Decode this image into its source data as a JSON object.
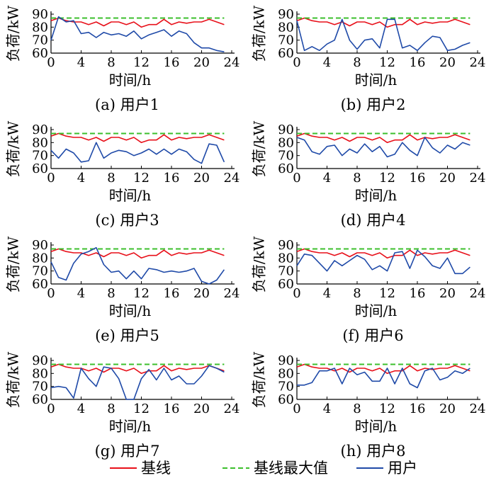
{
  "legend": {
    "baseline": "基线",
    "baseline_max": "基线最大值",
    "user": "用户"
  },
  "colors": {
    "baseline": "#e8101a",
    "baseline_max": "#3cbf2c",
    "user": "#1f4aa8"
  },
  "chart_data": [
    {
      "type": "line",
      "title": "(a) 用户1",
      "xlabel": "时间/h",
      "ylabel": "负荷/kW",
      "xlim": [
        0,
        24
      ],
      "ylim": [
        60,
        90
      ],
      "xticks": [
        0,
        4,
        8,
        12,
        16,
        20,
        24
      ],
      "yticks": [
        60,
        70,
        80,
        90
      ],
      "grid": false,
      "x": [
        0,
        1,
        2,
        3,
        4,
        5,
        6,
        7,
        8,
        9,
        10,
        11,
        12,
        13,
        14,
        15,
        16,
        17,
        18,
        19,
        20,
        21,
        22,
        23
      ],
      "series": [
        {
          "name": "基线",
          "values": [
            85,
            87,
            85,
            84,
            84,
            82,
            84,
            81,
            84,
            84,
            82,
            84,
            80,
            82,
            82,
            86,
            82,
            84,
            83,
            84,
            84,
            86,
            84,
            82
          ]
        },
        {
          "name": "基线最大值",
          "values": [
            87,
            87,
            87,
            87,
            87,
            87,
            87,
            87,
            87,
            87,
            87,
            87,
            87,
            87,
            87,
            87,
            87,
            87,
            87,
            87,
            87,
            87,
            87,
            87
          ]
        },
        {
          "name": "用户",
          "values": [
            70,
            88,
            84,
            85,
            75,
            76,
            72,
            76,
            74,
            75,
            73,
            77,
            71,
            74,
            76,
            78,
            73,
            77,
            75,
            68,
            64,
            64,
            62,
            61
          ]
        }
      ]
    },
    {
      "type": "line",
      "title": "(b) 用户2",
      "xlabel": "时间/h",
      "ylabel": "负荷/kW",
      "xlim": [
        0,
        24
      ],
      "ylim": [
        60,
        90
      ],
      "xticks": [
        0,
        4,
        8,
        12,
        16,
        20,
        24
      ],
      "yticks": [
        60,
        70,
        80,
        90
      ],
      "grid": false,
      "x": [
        0,
        1,
        2,
        3,
        4,
        5,
        6,
        7,
        8,
        9,
        10,
        11,
        12,
        13,
        14,
        15,
        16,
        17,
        18,
        19,
        20,
        21,
        22,
        23
      ],
      "series": [
        {
          "name": "基线",
          "values": [
            85,
            87,
            85,
            84,
            84,
            82,
            84,
            81,
            84,
            84,
            82,
            84,
            80,
            82,
            82,
            86,
            82,
            84,
            83,
            84,
            84,
            86,
            84,
            82
          ]
        },
        {
          "name": "基线最大值",
          "values": [
            87,
            87,
            87,
            87,
            87,
            87,
            87,
            87,
            87,
            87,
            87,
            87,
            87,
            87,
            87,
            87,
            87,
            87,
            87,
            87,
            87,
            87,
            87,
            87
          ]
        },
        {
          "name": "用户",
          "values": [
            85,
            62,
            65,
            62,
            67,
            70,
            86,
            70,
            63,
            70,
            71,
            64,
            86,
            86,
            64,
            66,
            62,
            68,
            73,
            72,
            62,
            63,
            66,
            68
          ]
        }
      ]
    },
    {
      "type": "line",
      "title": "(c) 用户3",
      "xlabel": "时间/h",
      "ylabel": "负荷/kW",
      "xlim": [
        0,
        24
      ],
      "ylim": [
        60,
        90
      ],
      "xticks": [
        0,
        4,
        8,
        12,
        16,
        20,
        24
      ],
      "yticks": [
        60,
        70,
        80,
        90
      ],
      "grid": false,
      "x": [
        0,
        1,
        2,
        3,
        4,
        5,
        6,
        7,
        8,
        9,
        10,
        11,
        12,
        13,
        14,
        15,
        16,
        17,
        18,
        19,
        20,
        21,
        22,
        23
      ],
      "series": [
        {
          "name": "基线",
          "values": [
            85,
            87,
            85,
            84,
            84,
            82,
            84,
            81,
            84,
            84,
            82,
            84,
            80,
            82,
            82,
            86,
            82,
            84,
            83,
            84,
            84,
            86,
            84,
            82
          ]
        },
        {
          "name": "基线最大值",
          "values": [
            87,
            87,
            87,
            87,
            87,
            87,
            87,
            87,
            87,
            87,
            87,
            87,
            87,
            87,
            87,
            87,
            87,
            87,
            87,
            87,
            87,
            87,
            87,
            87
          ]
        },
        {
          "name": "用户",
          "values": [
            74,
            68,
            75,
            72,
            65,
            66,
            80,
            68,
            72,
            74,
            73,
            70,
            72,
            75,
            71,
            75,
            71,
            75,
            73,
            67,
            64,
            79,
            78,
            65
          ]
        }
      ]
    },
    {
      "type": "line",
      "title": "(d) 用户4",
      "xlabel": "时间/h",
      "ylabel": "负荷/kW",
      "xlim": [
        0,
        24
      ],
      "ylim": [
        60,
        90
      ],
      "xticks": [
        0,
        4,
        8,
        12,
        16,
        20,
        24
      ],
      "yticks": [
        60,
        70,
        80,
        90
      ],
      "grid": false,
      "x": [
        0,
        1,
        2,
        3,
        4,
        5,
        6,
        7,
        8,
        9,
        10,
        11,
        12,
        13,
        14,
        15,
        16,
        17,
        18,
        19,
        20,
        21,
        22,
        23
      ],
      "series": [
        {
          "name": "基线",
          "values": [
            85,
            87,
            85,
            84,
            84,
            82,
            84,
            81,
            84,
            84,
            82,
            84,
            80,
            82,
            82,
            86,
            82,
            84,
            83,
            84,
            84,
            86,
            84,
            82
          ]
        },
        {
          "name": "基线最大值",
          "values": [
            87,
            87,
            87,
            87,
            87,
            87,
            87,
            87,
            87,
            87,
            87,
            87,
            87,
            87,
            87,
            87,
            87,
            87,
            87,
            87,
            87,
            87,
            87,
            87
          ]
        },
        {
          "name": "用户",
          "values": [
            84,
            82,
            73,
            71,
            77,
            78,
            70,
            75,
            72,
            79,
            73,
            77,
            69,
            71,
            80,
            74,
            70,
            84,
            76,
            72,
            78,
            75,
            80,
            78
          ]
        }
      ]
    },
    {
      "type": "line",
      "title": "(e) 用户5",
      "xlabel": "时间/h",
      "ylabel": "负荷/kW",
      "xlim": [
        0,
        24
      ],
      "ylim": [
        60,
        90
      ],
      "xticks": [
        0,
        4,
        8,
        12,
        16,
        20,
        24
      ],
      "yticks": [
        60,
        70,
        80,
        90
      ],
      "grid": false,
      "x": [
        0,
        1,
        2,
        3,
        4,
        5,
        6,
        7,
        8,
        9,
        10,
        11,
        12,
        13,
        14,
        15,
        16,
        17,
        18,
        19,
        20,
        21,
        22,
        23
      ],
      "series": [
        {
          "name": "基线",
          "values": [
            85,
            87,
            85,
            84,
            84,
            82,
            84,
            81,
            84,
            84,
            82,
            84,
            80,
            82,
            82,
            86,
            82,
            84,
            83,
            84,
            84,
            86,
            84,
            82
          ]
        },
        {
          "name": "基线最大值",
          "values": [
            87,
            87,
            87,
            87,
            87,
            87,
            87,
            87,
            87,
            87,
            87,
            87,
            87,
            87,
            87,
            87,
            87,
            87,
            87,
            87,
            87,
            87,
            87,
            87
          ]
        },
        {
          "name": "用户",
          "values": [
            77,
            65,
            63,
            76,
            83,
            85,
            88,
            75,
            69,
            70,
            64,
            70,
            64,
            72,
            71,
            69,
            70,
            69,
            70,
            72,
            62,
            60,
            63,
            71
          ]
        }
      ]
    },
    {
      "type": "line",
      "title": "(f) 用户6",
      "xlabel": "时间/h",
      "ylabel": "负荷/kW",
      "xlim": [
        0,
        24
      ],
      "ylim": [
        60,
        90
      ],
      "xticks": [
        0,
        4,
        8,
        12,
        16,
        20,
        24
      ],
      "yticks": [
        60,
        70,
        80,
        90
      ],
      "grid": false,
      "x": [
        0,
        1,
        2,
        3,
        4,
        5,
        6,
        7,
        8,
        9,
        10,
        11,
        12,
        13,
        14,
        15,
        16,
        17,
        18,
        19,
        20,
        21,
        22,
        23
      ],
      "series": [
        {
          "name": "基线",
          "values": [
            85,
            87,
            85,
            84,
            84,
            82,
            84,
            81,
            84,
            84,
            82,
            84,
            80,
            82,
            82,
            86,
            82,
            84,
            83,
            84,
            84,
            86,
            84,
            82
          ]
        },
        {
          "name": "基线最大值",
          "values": [
            87,
            87,
            87,
            87,
            87,
            87,
            87,
            87,
            87,
            87,
            87,
            87,
            87,
            87,
            87,
            87,
            87,
            87,
            87,
            87,
            87,
            87,
            87,
            87
          ]
        },
        {
          "name": "用户",
          "values": [
            74,
            83,
            82,
            76,
            70,
            78,
            74,
            78,
            82,
            79,
            71,
            74,
            70,
            84,
            85,
            72,
            86,
            81,
            74,
            72,
            80,
            68,
            68,
            73
          ]
        }
      ]
    },
    {
      "type": "line",
      "title": "(g) 用户7",
      "xlabel": "时间/h",
      "ylabel": "负荷/kW",
      "xlim": [
        0,
        24
      ],
      "ylim": [
        60,
        90
      ],
      "xticks": [
        0,
        4,
        8,
        12,
        16,
        20,
        24
      ],
      "yticks": [
        60,
        70,
        80,
        90
      ],
      "grid": false,
      "x": [
        0,
        1,
        2,
        3,
        4,
        5,
        6,
        7,
        8,
        9,
        10,
        11,
        12,
        13,
        14,
        15,
        16,
        17,
        18,
        19,
        20,
        21,
        22,
        23
      ],
      "series": [
        {
          "name": "基线",
          "values": [
            85,
            87,
            85,
            84,
            84,
            82,
            84,
            81,
            84,
            84,
            82,
            84,
            80,
            82,
            82,
            86,
            82,
            84,
            83,
            84,
            84,
            86,
            84,
            82
          ]
        },
        {
          "name": "基线最大值",
          "values": [
            87,
            87,
            87,
            87,
            87,
            87,
            87,
            87,
            87,
            87,
            87,
            87,
            87,
            87,
            87,
            87,
            87,
            87,
            87,
            87,
            87,
            87,
            87,
            87
          ]
        },
        {
          "name": "用户",
          "values": [
            69,
            70,
            69,
            61,
            84,
            76,
            70,
            85,
            84,
            76,
            60,
            60,
            76,
            83,
            75,
            84,
            75,
            78,
            72,
            72,
            78,
            86,
            84,
            81
          ]
        }
      ]
    },
    {
      "type": "line",
      "title": "(h) 用户8",
      "xlabel": "时间/h",
      "ylabel": "负荷/kW",
      "xlim": [
        0,
        24
      ],
      "ylim": [
        60,
        90
      ],
      "xticks": [
        0,
        4,
        8,
        12,
        16,
        20,
        24
      ],
      "yticks": [
        60,
        70,
        80,
        90
      ],
      "grid": false,
      "x": [
        0,
        1,
        2,
        3,
        4,
        5,
        6,
        7,
        8,
        9,
        10,
        11,
        12,
        13,
        14,
        15,
        16,
        17,
        18,
        19,
        20,
        21,
        22,
        23
      ],
      "series": [
        {
          "name": "基线",
          "values": [
            85,
            87,
            85,
            84,
            84,
            82,
            84,
            81,
            84,
            84,
            82,
            84,
            80,
            82,
            82,
            86,
            82,
            84,
            83,
            84,
            84,
            86,
            84,
            82
          ]
        },
        {
          "name": "基线最大值",
          "values": [
            87,
            87,
            87,
            87,
            87,
            87,
            87,
            87,
            87,
            87,
            87,
            87,
            87,
            87,
            87,
            87,
            87,
            87,
            87,
            87,
            87,
            87,
            87,
            87
          ]
        },
        {
          "name": "用户",
          "values": [
            71,
            71,
            73,
            82,
            82,
            84,
            72,
            84,
            79,
            81,
            74,
            74,
            84,
            72,
            84,
            72,
            69,
            82,
            84,
            75,
            77,
            82,
            80,
            84
          ]
        }
      ]
    }
  ]
}
